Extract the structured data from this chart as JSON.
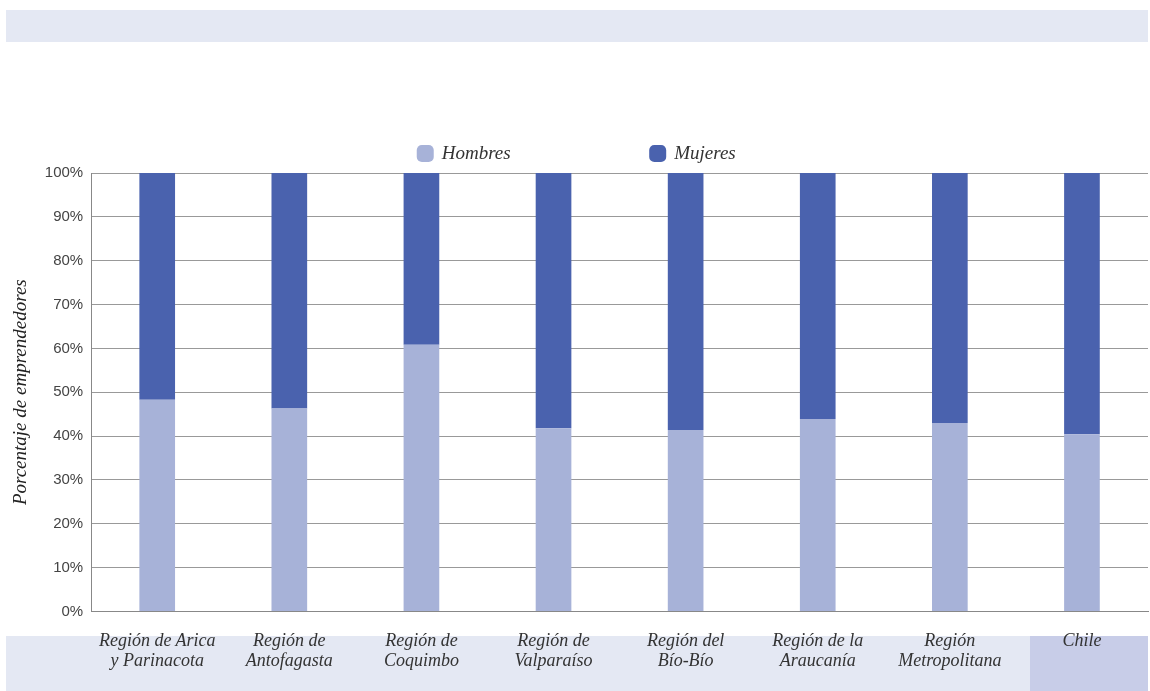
{
  "chart_data": {
    "type": "bar",
    "stacked": true,
    "ylabel": "Porcentaje de emprendedores",
    "categories": [
      "Región de Arica y Parinacota",
      "Región de Antofagasta",
      "Región de Coquimbo",
      "Región de Valparaíso",
      "Región del Bío-Bío",
      "Región de la Araucanía",
      "Región Metropolitana",
      "Chile"
    ],
    "series": [
      {
        "name": "Hombres",
        "color": "#a7b2d8",
        "values": [
          48.3,
          46.3,
          60.8,
          41.8,
          41.4,
          43.9,
          43.0,
          40.4
        ]
      },
      {
        "name": "Mujeres",
        "color": "#4a62ae",
        "values": [
          51.7,
          53.7,
          39.2,
          58.2,
          58.6,
          56.1,
          57.0,
          59.6
        ]
      }
    ],
    "ylim": [
      0,
      100
    ],
    "yticks": [
      {
        "value": 0,
        "label": "0%"
      },
      {
        "value": 10,
        "label": "10%"
      },
      {
        "value": 20,
        "label": "20%"
      },
      {
        "value": 30,
        "label": "30%"
      },
      {
        "value": 40,
        "label": "40%"
      },
      {
        "value": 50,
        "label": "50%"
      },
      {
        "value": 60,
        "label": "60%"
      },
      {
        "value": 70,
        "label": "70%"
      },
      {
        "value": 80,
        "label": "80%"
      },
      {
        "value": 90,
        "label": "90%"
      },
      {
        "value": 100,
        "label": "100%"
      }
    ],
    "grid": "y",
    "legend": "top"
  }
}
